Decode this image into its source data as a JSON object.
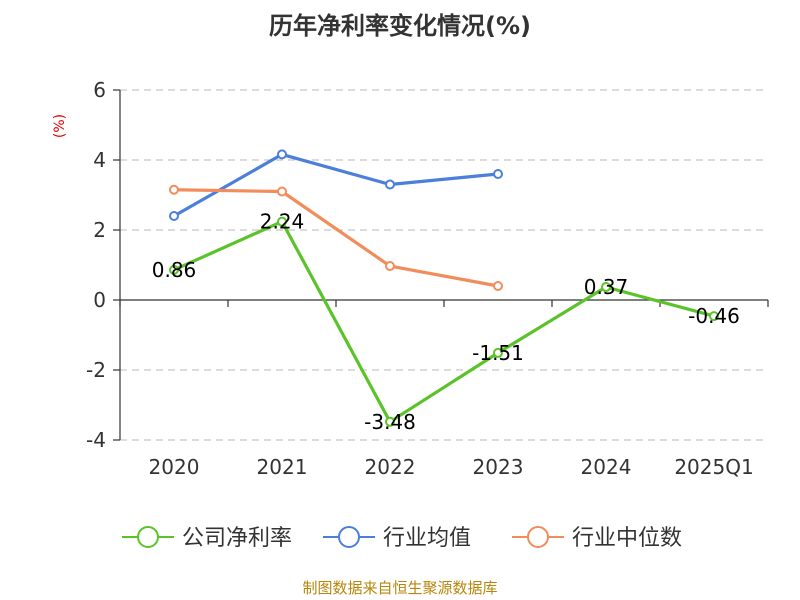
{
  "chart_data": {
    "type": "line",
    "title": "历年净利率变化情况(%)",
    "ylabel": "(%)",
    "xlabel": "",
    "categories": [
      "2020",
      "2021",
      "2022",
      "2023",
      "2024",
      "2025Q1"
    ],
    "ylim": [
      -4,
      6
    ],
    "yticks": [
      6,
      4,
      2,
      0,
      -2,
      -4
    ],
    "ytick_labels": [
      "6",
      "4",
      "2",
      "0",
      "-2",
      "-4"
    ],
    "grid": "horizontal dashed",
    "legend_position": "bottom",
    "series": [
      {
        "name": "公司净利率",
        "color": "#5bc32a",
        "values": [
          0.86,
          2.24,
          -3.48,
          -1.51,
          0.37,
          -0.46
        ],
        "labels": [
          "0.86",
          "2.24",
          "-3.48",
          "-1.51",
          "0.37",
          "-0.46"
        ]
      },
      {
        "name": "行业均值",
        "color": "#4b7fdb",
        "values": [
          2.4,
          4.16,
          3.3,
          3.6,
          null,
          null
        ]
      },
      {
        "name": "行业中位数",
        "color": "#f28c5a",
        "values": [
          3.15,
          3.1,
          0.97,
          0.4,
          null,
          null
        ]
      }
    ],
    "source": "制图数据来自恒生聚源数据库"
  }
}
